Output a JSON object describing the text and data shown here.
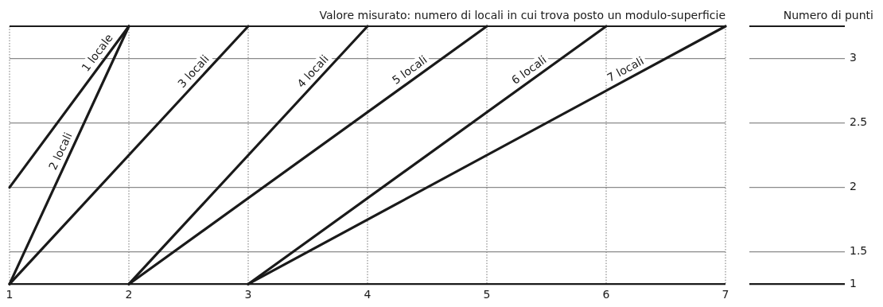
{
  "chart_data": {
    "type": "line",
    "xlabel": "Valore misurato: numero di locali in cui trova posto un modulo-superficie",
    "ylabel": "Numero di punti",
    "xlim": [
      1,
      7
    ],
    "xticks": [
      1,
      2,
      3,
      4,
      5,
      6,
      7
    ],
    "ylim": [
      1.25,
      3.25
    ],
    "yticks": [
      {
        "value": 1.25,
        "label": "1"
      },
      {
        "value": 1.5,
        "label": "1.5"
      },
      {
        "value": 2,
        "label": "2"
      },
      {
        "value": 2.5,
        "label": "2.5"
      },
      {
        "value": 3,
        "label": "3"
      }
    ],
    "grid": true,
    "legend": false,
    "marker": "none",
    "line_style": "solid",
    "series": [
      {
        "name": "1 locale",
        "color": "#1a1a1a",
        "x": [
          1,
          2
        ],
        "values": [
          2,
          3.25
        ]
      },
      {
        "name": "2 locali",
        "color": "#1a1a1a",
        "x": [
          1,
          2
        ],
        "values": [
          1.25,
          3.25
        ]
      },
      {
        "name": "3 locali",
        "color": "#1a1a1a",
        "x": [
          1,
          3
        ],
        "values": [
          1.25,
          3.25
        ]
      },
      {
        "name": "4 locali",
        "color": "#1a1a1a",
        "x": [
          2,
          4
        ],
        "values": [
          1.25,
          3.25
        ]
      },
      {
        "name": "5 locali",
        "color": "#1a1a1a",
        "x": [
          2,
          5
        ],
        "values": [
          1.25,
          3.25
        ]
      },
      {
        "name": "6 locali",
        "color": "#1a1a1a",
        "x": [
          3,
          6
        ],
        "values": [
          1.25,
          3.25
        ]
      },
      {
        "name": "7 locali",
        "color": "#1a1a1a",
        "x": [
          3,
          7
        ],
        "values": [
          1.25,
          3.25
        ]
      }
    ]
  }
}
